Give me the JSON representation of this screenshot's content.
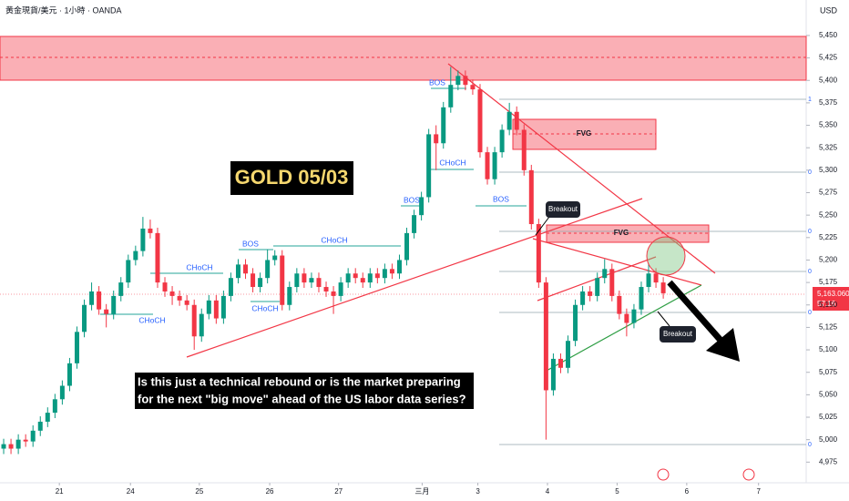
{
  "chart_data": {
    "type": "candlestick",
    "header": "黄金現貨/美元 · 1小時 · OANDA",
    "currency": "USD",
    "title": "GOLD 05/03",
    "question": [
      "Is this just a technical rebound or is the market preparing",
      "for the next \"big move\" ahead of the US labor data series?"
    ],
    "labels": {
      "bos": "BOS",
      "choch": "CHoCH",
      "fvg": "FVG",
      "breakout": "Breakout",
      "one": "1",
      "zero": "0"
    },
    "last_price": {
      "value": 5163.06,
      "label": "5,163.060",
      "timer": "57:16"
    },
    "up_color": "#089981",
    "down_color": "#f23645",
    "xlim": [
      0,
      110
    ],
    "xticks": [
      {
        "value": 8.1,
        "label": "21"
      },
      {
        "value": 17.8,
        "label": "24"
      },
      {
        "value": 27.2,
        "label": "25"
      },
      {
        "value": 36.8,
        "label": "26"
      },
      {
        "value": 46.2,
        "label": "27"
      },
      {
        "value": 57.6,
        "label": "三月"
      },
      {
        "value": 65.2,
        "label": "3"
      },
      {
        "value": 74.7,
        "label": "4"
      },
      {
        "value": 84.2,
        "label": "5"
      },
      {
        "value": 93.7,
        "label": "6"
      },
      {
        "value": 103.5,
        "label": "7"
      }
    ],
    "ylim": [
      4952,
      5489.5
    ],
    "yticks": [
      {
        "value": 4975,
        "label": "4,975"
      },
      {
        "value": 5000,
        "label": "5,000"
      },
      {
        "value": 5025,
        "label": "5,025"
      },
      {
        "value": 5050,
        "label": "5,050"
      },
      {
        "value": 5075,
        "label": "5,075"
      },
      {
        "value": 5100,
        "label": "5,100"
      },
      {
        "value": 5125,
        "label": "5,125"
      },
      {
        "value": 5150,
        "label": "5,150"
      },
      {
        "value": 5175,
        "label": "5,175"
      },
      {
        "value": 5200,
        "label": "5,200"
      },
      {
        "value": 5225,
        "label": "5,225"
      },
      {
        "value": 5250,
        "label": "5,250"
      },
      {
        "value": 5275,
        "label": "5,275"
      },
      {
        "value": 5300,
        "label": "5,300"
      },
      {
        "value": 5325,
        "label": "5,325"
      },
      {
        "value": 5350,
        "label": "5,350"
      },
      {
        "value": 5375,
        "label": "5,375"
      },
      {
        "value": 5400,
        "label": "5,400"
      },
      {
        "value": 5425,
        "label": "5,425"
      },
      {
        "value": 5450,
        "label": "5,450"
      }
    ],
    "open": [
      4990,
      4995,
      4990,
      5000,
      4998,
      5010,
      5020,
      5030,
      5045,
      5060,
      5085,
      5120,
      5150,
      5165,
      5145,
      5140,
      5160,
      5175,
      5200,
      5210,
      5235,
      5230,
      5175,
      5165,
      5160,
      5155,
      5150,
      5115,
      5140,
      5155,
      5135,
      5160,
      5180,
      5195,
      5185,
      5170,
      5180,
      5200,
      5205,
      5150,
      5170,
      5185,
      5175,
      5180,
      5170,
      5165,
      5160,
      5175,
      5185,
      5180,
      5175,
      5185,
      5180,
      5190,
      5185,
      5200,
      5230,
      5250,
      5270,
      5340,
      5330,
      5370,
      5395,
      5405,
      5395,
      5390,
      5320,
      5290,
      5320,
      5345,
      5365,
      5345,
      5300,
      5240,
      5175,
      5055,
      5090,
      5080,
      5110,
      5150,
      5165,
      5160,
      5180,
      5190,
      5160,
      5140,
      5130,
      5145,
      5170,
      5185,
      5175
    ],
    "high": [
      5001,
      5001,
      5006,
      5006,
      5016,
      5026,
      5036,
      5051,
      5066,
      5091,
      5126,
      5156,
      5175,
      5171,
      5151,
      5166,
      5181,
      5206,
      5216,
      5248,
      5245,
      5236,
      5181,
      5171,
      5166,
      5161,
      5156,
      5146,
      5161,
      5161,
      5166,
      5186,
      5201,
      5201,
      5191,
      5186,
      5212,
      5211,
      5211,
      5176,
      5191,
      5191,
      5186,
      5186,
      5176,
      5171,
      5181,
      5191,
      5191,
      5186,
      5191,
      5191,
      5196,
      5196,
      5206,
      5236,
      5256,
      5276,
      5346,
      5350,
      5376,
      5415,
      5411,
      5411,
      5401,
      5396,
      5326,
      5326,
      5351,
      5375,
      5371,
      5351,
      5306,
      5246,
      5181,
      5096,
      5096,
      5116,
      5156,
      5171,
      5171,
      5186,
      5201,
      5196,
      5166,
      5146,
      5151,
      5176,
      5196,
      5191,
      5181
    ],
    "low": [
      4984,
      4984,
      4984,
      4992,
      4992,
      5004,
      5014,
      5024,
      5039,
      5054,
      5079,
      5114,
      5144,
      5139,
      5125,
      5134,
      5154,
      5169,
      5194,
      5204,
      5224,
      5169,
      5159,
      5150,
      5149,
      5144,
      5100,
      5109,
      5134,
      5129,
      5129,
      5154,
      5174,
      5179,
      5164,
      5164,
      5174,
      5194,
      5144,
      5144,
      5164,
      5169,
      5169,
      5164,
      5159,
      5140,
      5154,
      5169,
      5174,
      5169,
      5169,
      5174,
      5174,
      5179,
      5179,
      5194,
      5224,
      5244,
      5264,
      5300,
      5324,
      5364,
      5389,
      5389,
      5384,
      5314,
      5284,
      5284,
      5314,
      5339,
      5339,
      5294,
      5234,
      5169,
      5000,
      5049,
      5074,
      5074,
      5104,
      5144,
      5154,
      5154,
      5174,
      5154,
      5134,
      5115,
      5124,
      5139,
      5164,
      5169,
      5157
    ],
    "close": [
      4995,
      4990,
      5000,
      4998,
      5010,
      5020,
      5030,
      5045,
      5060,
      5085,
      5120,
      5150,
      5165,
      5145,
      5140,
      5160,
      5175,
      5200,
      5210,
      5235,
      5230,
      5175,
      5165,
      5160,
      5155,
      5150,
      5115,
      5140,
      5155,
      5135,
      5160,
      5180,
      5195,
      5185,
      5170,
      5180,
      5200,
      5205,
      5150,
      5170,
      5185,
      5175,
      5180,
      5170,
      5165,
      5160,
      5175,
      5185,
      5180,
      5175,
      5185,
      5180,
      5190,
      5185,
      5200,
      5230,
      5250,
      5270,
      5340,
      5330,
      5370,
      5395,
      5405,
      5395,
      5390,
      5320,
      5290,
      5320,
      5345,
      5365,
      5345,
      5300,
      5240,
      5175,
      5055,
      5090,
      5080,
      5110,
      5150,
      5165,
      5160,
      5180,
      5190,
      5160,
      5140,
      5130,
      5145,
      5170,
      5185,
      5175,
      5163
    ]
  }
}
